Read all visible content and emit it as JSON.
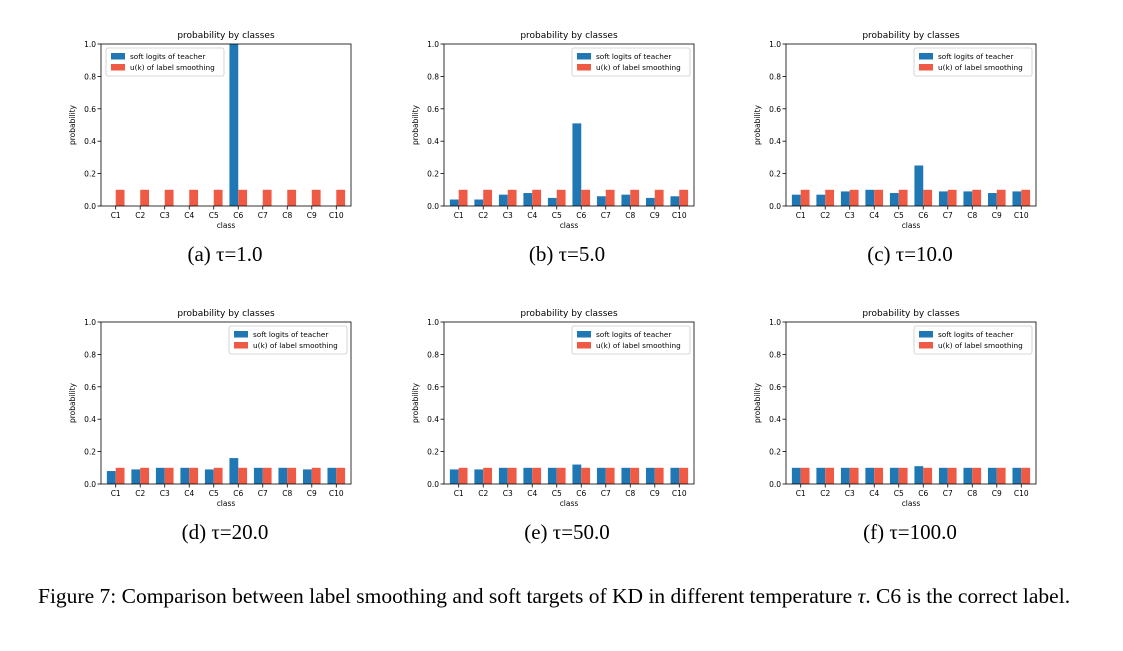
{
  "figure": {
    "caption_prefix": "Figure 7: Comparison between label smoothing and soft targets of KD in different temperature ",
    "caption_symbol": "τ",
    "caption_suffix": ". C6 is the correct label.",
    "subcaptions": [
      "(a) τ=1.0",
      "(b) τ=5.0",
      "(c) τ=10.0",
      "(d) τ=20.0",
      "(e) τ=50.0",
      "(f) τ=100.0"
    ]
  },
  "colors": {
    "teacher": "#1f77b4",
    "smoothing": "#ef5a44"
  },
  "chart_data": [
    {
      "type": "bar",
      "title": "probability by classes",
      "xlabel": "class",
      "ylabel": "probability",
      "categories": [
        "C1",
        "C2",
        "C3",
        "C4",
        "C5",
        "C6",
        "C7",
        "C8",
        "C9",
        "C10"
      ],
      "yticks": [
        "0.0",
        "0.2",
        "0.4",
        "0.6",
        "0.8",
        "1.0"
      ],
      "ylim": [
        0,
        1.0
      ],
      "legend_loc": "upper-left",
      "series": [
        {
          "name": "soft logits of teacher",
          "values": [
            0,
            0,
            0,
            0,
            0,
            1.0,
            0,
            0,
            0,
            0
          ]
        },
        {
          "name": "u(k) of label smoothing",
          "values": [
            0.1,
            0.1,
            0.1,
            0.1,
            0.1,
            0.1,
            0.1,
            0.1,
            0.1,
            0.1
          ]
        }
      ]
    },
    {
      "type": "bar",
      "title": "probability by classes",
      "xlabel": "class",
      "ylabel": "probability",
      "categories": [
        "C1",
        "C2",
        "C3",
        "C4",
        "C5",
        "C6",
        "C7",
        "C8",
        "C9",
        "C10"
      ],
      "yticks": [
        "0.0",
        "0.2",
        "0.4",
        "0.6",
        "0.8",
        "1.0"
      ],
      "ylim": [
        0,
        1.0
      ],
      "legend_loc": "upper-right",
      "series": [
        {
          "name": "soft logits of teacher",
          "values": [
            0.04,
            0.04,
            0.07,
            0.08,
            0.05,
            0.51,
            0.06,
            0.07,
            0.05,
            0.06
          ]
        },
        {
          "name": "u(k) of label smoothing",
          "values": [
            0.1,
            0.1,
            0.1,
            0.1,
            0.1,
            0.1,
            0.1,
            0.1,
            0.1,
            0.1
          ]
        }
      ]
    },
    {
      "type": "bar",
      "title": "probability by classes",
      "xlabel": "class",
      "ylabel": "probability",
      "categories": [
        "C1",
        "C2",
        "C3",
        "C4",
        "C5",
        "C6",
        "C7",
        "C8",
        "C9",
        "C10"
      ],
      "yticks": [
        "0.0",
        "0.2",
        "0.4",
        "0.6",
        "0.8",
        "1.0"
      ],
      "ylim": [
        0,
        1.0
      ],
      "legend_loc": "upper-right",
      "series": [
        {
          "name": "soft logits of teacher",
          "values": [
            0.07,
            0.07,
            0.09,
            0.1,
            0.08,
            0.25,
            0.09,
            0.09,
            0.08,
            0.09
          ]
        },
        {
          "name": "u(k) of label smoothing",
          "values": [
            0.1,
            0.1,
            0.1,
            0.1,
            0.1,
            0.1,
            0.1,
            0.1,
            0.1,
            0.1
          ]
        }
      ]
    },
    {
      "type": "bar",
      "title": "probability by classes",
      "xlabel": "class",
      "ylabel": "probability",
      "categories": [
        "C1",
        "C2",
        "C3",
        "C4",
        "C5",
        "C6",
        "C7",
        "C8",
        "C9",
        "C10"
      ],
      "yticks": [
        "0.0",
        "0.2",
        "0.4",
        "0.6",
        "0.8",
        "1.0"
      ],
      "ylim": [
        0,
        1.0
      ],
      "legend_loc": "upper-right",
      "series": [
        {
          "name": "soft logits of teacher",
          "values": [
            0.08,
            0.09,
            0.1,
            0.1,
            0.09,
            0.16,
            0.1,
            0.1,
            0.09,
            0.1
          ]
        },
        {
          "name": "u(k) of label smoothing",
          "values": [
            0.1,
            0.1,
            0.1,
            0.1,
            0.1,
            0.1,
            0.1,
            0.1,
            0.1,
            0.1
          ]
        }
      ]
    },
    {
      "type": "bar",
      "title": "probability by classes",
      "xlabel": "class",
      "ylabel": "probability",
      "categories": [
        "C1",
        "C2",
        "C3",
        "C4",
        "C5",
        "C6",
        "C7",
        "C8",
        "C9",
        "C10"
      ],
      "yticks": [
        "0.0",
        "0.2",
        "0.4",
        "0.6",
        "0.8",
        "1.0"
      ],
      "ylim": [
        0,
        1.0
      ],
      "legend_loc": "upper-right",
      "series": [
        {
          "name": "soft logits of teacher",
          "values": [
            0.09,
            0.09,
            0.1,
            0.1,
            0.1,
            0.12,
            0.1,
            0.1,
            0.1,
            0.1
          ]
        },
        {
          "name": "u(k) of label smoothing",
          "values": [
            0.1,
            0.1,
            0.1,
            0.1,
            0.1,
            0.1,
            0.1,
            0.1,
            0.1,
            0.1
          ]
        }
      ]
    },
    {
      "type": "bar",
      "title": "probability by classes",
      "xlabel": "class",
      "ylabel": "probability",
      "categories": [
        "C1",
        "C2",
        "C3",
        "C4",
        "C5",
        "C6",
        "C7",
        "C8",
        "C9",
        "C10"
      ],
      "yticks": [
        "0.0",
        "0.2",
        "0.4",
        "0.6",
        "0.8",
        "1.0"
      ],
      "ylim": [
        0,
        1.0
      ],
      "legend_loc": "upper-right",
      "series": [
        {
          "name": "soft logits of teacher",
          "values": [
            0.1,
            0.1,
            0.1,
            0.1,
            0.1,
            0.11,
            0.1,
            0.1,
            0.1,
            0.1
          ]
        },
        {
          "name": "u(k) of label smoothing",
          "values": [
            0.1,
            0.1,
            0.1,
            0.1,
            0.1,
            0.1,
            0.1,
            0.1,
            0.1,
            0.1
          ]
        }
      ]
    }
  ]
}
